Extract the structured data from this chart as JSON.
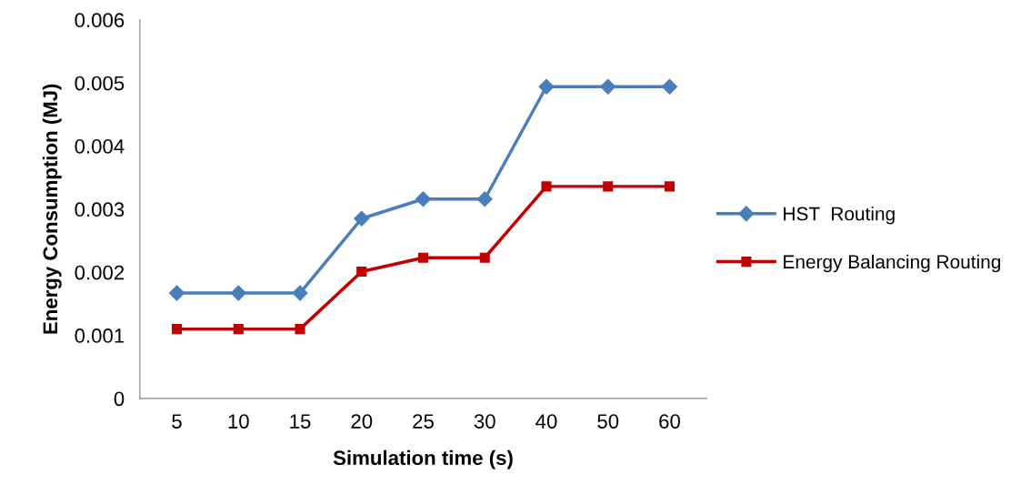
{
  "chart_data": {
    "type": "line",
    "xlabel": "Simulation time (s)",
    "ylabel": "Energy Consumption (MJ)",
    "categories": [
      "5",
      "10",
      "15",
      "20",
      "25",
      "30",
      "40",
      "50",
      "60"
    ],
    "series": [
      {
        "name": "HST  Routing",
        "color": "#4a7ebb",
        "marker": "diamond",
        "values": [
          0.00167,
          0.00167,
          0.00167,
          0.00285,
          0.00316,
          0.00316,
          0.00494,
          0.00494,
          0.00494
        ]
      },
      {
        "name": "Energy Balancing Routing",
        "color": "#c00000",
        "marker": "square",
        "values": [
          0.0011,
          0.0011,
          0.0011,
          0.00201,
          0.00223,
          0.00223,
          0.00336,
          0.00336,
          0.00336
        ]
      }
    ],
    "ylim": [
      0,
      0.006
    ],
    "yticks": [
      {
        "value": 0,
        "label": "0"
      },
      {
        "value": 0.001,
        "label": "0.001"
      },
      {
        "value": 0.002,
        "label": "0.002"
      },
      {
        "value": 0.003,
        "label": "0.003"
      },
      {
        "value": 0.004,
        "label": "0.004"
      },
      {
        "value": 0.005,
        "label": "0.005"
      },
      {
        "value": 0.006,
        "label": "0.006"
      }
    ],
    "grid": false,
    "legend": "right",
    "line_style": "solid"
  }
}
